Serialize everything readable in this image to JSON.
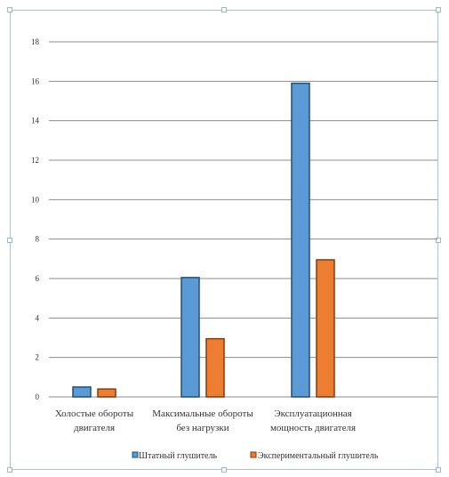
{
  "colors": {
    "series_blue": "#5b9bd5",
    "series_blue_stroke": "#1f4e79",
    "series_orange": "#ed7d31",
    "series_orange_stroke": "#843c0c"
  },
  "chart_data": {
    "type": "bar",
    "title": "",
    "xlabel": "",
    "ylabel": "",
    "ylim": [
      0,
      18
    ],
    "yticks": [
      0,
      2,
      4,
      6,
      8,
      10,
      12,
      14,
      16,
      18
    ],
    "grid": true,
    "legend_position": "bottom",
    "categories": [
      [
        "Холостые обороты",
        "двигателя"
      ],
      [
        "Максимальные обороты",
        "без нагрузки"
      ],
      [
        "Эксплуатационная",
        "мощность двигателя"
      ]
    ],
    "series": [
      {
        "name": "Штатный глушитель",
        "values": [
          0.5,
          6.05,
          15.9
        ],
        "color": "#5b9bd5"
      },
      {
        "name": "Экспериментальный глушитель",
        "values": [
          0.4,
          2.95,
          6.95
        ],
        "color": "#ed7d31"
      }
    ]
  }
}
